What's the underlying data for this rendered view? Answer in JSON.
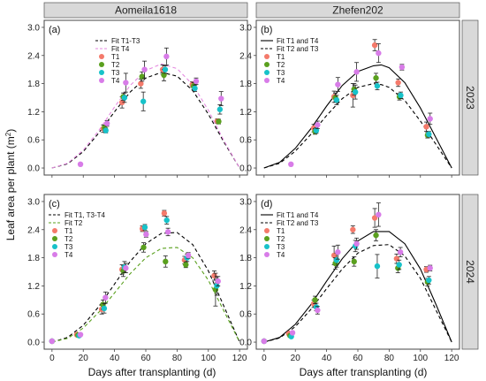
{
  "figure": {
    "columns": [
      "Aomeila1618",
      "Zhefen202"
    ],
    "rows": [
      "2023",
      "2024"
    ],
    "xlabel": "Days after transplanting (d)",
    "ylabel_main": "Leaf area per plant (m",
    "ylabel_sup": "2",
    "ylabel_end": ")"
  },
  "chart_data": [
    {
      "type": "scatter",
      "panel": "(a)",
      "column": "Aomeila1618",
      "row": "2023",
      "xlim": [
        -5,
        125
      ],
      "ylim": [
        -0.15,
        3.15
      ],
      "xticks": [
        0,
        20,
        40,
        60,
        80,
        100,
        120
      ],
      "yticks": [
        0.0,
        0.6,
        1.2,
        1.8,
        2.4,
        3.0
      ],
      "grid": false,
      "legend_position": "top-right",
      "fits": [
        {
          "name": "Fit T1-T3",
          "color": "#000000",
          "dash": "dashed",
          "x": [
            0,
            10,
            20,
            30,
            40,
            50,
            60,
            70,
            80,
            90,
            100,
            110,
            120
          ],
          "y": [
            0.0,
            0.09,
            0.35,
            0.75,
            1.2,
            1.62,
            1.92,
            2.04,
            1.96,
            1.65,
            1.15,
            0.55,
            0.0
          ]
        },
        {
          "name": "Fit T4",
          "color": "#e58ae0",
          "dash": "dashed",
          "x": [
            0,
            10,
            20,
            30,
            40,
            50,
            60,
            70,
            80,
            90,
            100,
            110,
            120
          ],
          "y": [
            0.0,
            0.1,
            0.38,
            0.8,
            1.3,
            1.76,
            2.08,
            2.22,
            2.12,
            1.78,
            1.23,
            0.58,
            0.0
          ]
        }
      ],
      "series": [
        {
          "name": "T1",
          "color": "#f47a6b",
          "points": [
            [
              34,
              0.84,
              0.08
            ],
            [
              46,
              1.4,
              0.12
            ],
            [
              58,
              1.8,
              0.1
            ],
            [
              72,
              2.1,
              0.1
            ],
            [
              91,
              1.78,
              0.06
            ],
            [
              107,
              1.0,
              0.05
            ]
          ]
        },
        {
          "name": "T2",
          "color": "#5aa01e",
          "points": [
            [
              34,
              0.86,
              0.05
            ],
            [
              46,
              1.52,
              0.08
            ],
            [
              58,
              1.95,
              0.1
            ],
            [
              72,
              1.98,
              0.12
            ],
            [
              91,
              1.75,
              0.07
            ],
            [
              107,
              0.99,
              0.05
            ]
          ]
        },
        {
          "name": "T3",
          "color": "#17c2c9",
          "points": [
            [
              34,
              0.8,
              0.05
            ],
            [
              46,
              1.5,
              0.1
            ],
            [
              58,
              1.42,
              0.2
            ],
            [
              72,
              2.1,
              0.08
            ],
            [
              91,
              1.7,
              0.07
            ],
            [
              107,
              1.25,
              0.1
            ]
          ]
        },
        {
          "name": "T4",
          "color": "#d87ce8",
          "points": [
            [
              17,
              0.08,
              0.0
            ],
            [
              34,
              0.95,
              0.06
            ],
            [
              46,
              1.82,
              0.2
            ],
            [
              58,
              2.1,
              0.18
            ],
            [
              72,
              2.38,
              0.18
            ],
            [
              91,
              1.85,
              0.07
            ],
            [
              107,
              1.48,
              0.15
            ]
          ]
        }
      ]
    },
    {
      "type": "scatter",
      "panel": "(b)",
      "column": "Zhefen202",
      "row": "2023",
      "xlim": [
        -5,
        125
      ],
      "ylim": [
        -0.15,
        3.15
      ],
      "xticks": [
        0,
        20,
        40,
        60,
        80,
        100,
        120
      ],
      "yticks": [
        0.0,
        0.6,
        1.2,
        1.8,
        2.4,
        3.0
      ],
      "grid": false,
      "legend_position": "top-left",
      "fits": [
        {
          "name": "Fit T1 and T4",
          "color": "#000000",
          "dash": "solid",
          "x": [
            0,
            10,
            20,
            30,
            40,
            50,
            60,
            70,
            75,
            80,
            90,
            100,
            110,
            120
          ],
          "y": [
            0.0,
            0.12,
            0.42,
            0.84,
            1.32,
            1.76,
            2.06,
            2.18,
            2.2,
            2.14,
            1.82,
            1.28,
            0.64,
            0.0
          ]
        },
        {
          "name": "Fit T2 and T3",
          "color": "#000000",
          "dash": "dashed",
          "x": [
            0,
            10,
            20,
            30,
            40,
            50,
            60,
            70,
            75,
            80,
            90,
            100,
            110,
            120
          ],
          "y": [
            0.0,
            0.1,
            0.36,
            0.72,
            1.12,
            1.48,
            1.72,
            1.8,
            1.78,
            1.72,
            1.44,
            1.0,
            0.5,
            0.0
          ]
        }
      ],
      "series": [
        {
          "name": "T1",
          "color": "#f47a6b",
          "points": [
            [
              33,
              0.85,
              0.08
            ],
            [
              46,
              1.52,
              0.12
            ],
            [
              58,
              1.55,
              0.25
            ],
            [
              72,
              2.62,
              0.12
            ],
            [
              87,
              1.82,
              0.08
            ],
            [
              105,
              0.88,
              0.1
            ]
          ]
        },
        {
          "name": "T2",
          "color": "#5aa01e",
          "points": [
            [
              33,
              0.78,
              0.06
            ],
            [
              46,
              1.5,
              0.1
            ],
            [
              58,
              1.68,
              0.12
            ],
            [
              72,
              1.92,
              0.1
            ],
            [
              87,
              1.52,
              0.07
            ],
            [
              105,
              0.7,
              0.06
            ]
          ]
        },
        {
          "name": "T3",
          "color": "#17c2c9",
          "points": [
            [
              33,
              0.8,
              0.06
            ],
            [
              46,
              1.45,
              0.1
            ],
            [
              58,
              1.62,
              0.15
            ],
            [
              72,
              1.75,
              0.08
            ],
            [
              87,
              1.55,
              0.07
            ],
            [
              105,
              0.72,
              0.06
            ]
          ]
        },
        {
          "name": "T4",
          "color": "#d87ce8",
          "points": [
            [
              16,
              0.08,
              0.0
            ],
            [
              33,
              0.92,
              0.08
            ],
            [
              46,
              1.78,
              0.15
            ],
            [
              58,
              2.05,
              0.2
            ],
            [
              72,
              2.45,
              0.2
            ],
            [
              87,
              2.15,
              0.06
            ],
            [
              105,
              1.05,
              0.12
            ]
          ]
        }
      ]
    },
    {
      "type": "scatter",
      "panel": "(c)",
      "column": "Aomeila1618",
      "row": "2024",
      "xlim": [
        -5,
        125
      ],
      "ylim": [
        -0.15,
        3.15
      ],
      "xticks": [
        0,
        20,
        40,
        60,
        80,
        100,
        120
      ],
      "yticks": [
        0.0,
        0.6,
        1.2,
        1.8,
        2.4,
        3.0
      ],
      "grid": false,
      "legend_position": "top-left",
      "fits": [
        {
          "name": "Fit T1, T3-T4",
          "color": "#000000",
          "dash": "dashed",
          "x": [
            0,
            10,
            20,
            30,
            40,
            50,
            60,
            70,
            80,
            90,
            100,
            110,
            120
          ],
          "y": [
            0.0,
            0.1,
            0.36,
            0.76,
            1.24,
            1.72,
            2.1,
            2.32,
            2.34,
            2.08,
            1.52,
            0.76,
            0.0
          ]
        },
        {
          "name": "Fit T2",
          "color": "#5aa01e",
          "dash": "dashed",
          "x": [
            0,
            10,
            20,
            30,
            40,
            50,
            60,
            70,
            80,
            90,
            100,
            110,
            120
          ],
          "y": [
            0.0,
            0.08,
            0.3,
            0.64,
            1.05,
            1.46,
            1.8,
            2.0,
            2.02,
            1.8,
            1.32,
            0.66,
            0.0
          ]
        }
      ],
      "series": [
        {
          "name": "T1",
          "color": "#f47a6b",
          "points": [
            [
              0,
              0.02,
              0.0
            ],
            [
              17,
              0.16,
              0.0
            ],
            [
              33,
              0.7,
              0.1
            ],
            [
              46,
              1.55,
              0.1
            ],
            [
              59,
              2.42,
              0.06
            ],
            [
              73,
              2.75,
              0.06
            ],
            [
              86,
              1.75,
              0.08
            ],
            [
              105,
              1.42,
              0.1
            ]
          ]
        },
        {
          "name": "T2",
          "color": "#5aa01e",
          "points": [
            [
              0,
              0.02,
              0.0
            ],
            [
              17,
              0.15,
              0.0
            ],
            [
              33,
              0.8,
              0.1
            ],
            [
              46,
              1.52,
              0.12
            ],
            [
              59,
              2.02,
              0.1
            ],
            [
              73,
              1.72,
              0.12
            ],
            [
              86,
              1.65,
              0.06
            ],
            [
              105,
              1.12,
              0.35
            ]
          ]
        },
        {
          "name": "T3",
          "color": "#17c2c9",
          "points": [
            [
              0,
              0.02,
              0.0
            ],
            [
              17,
              0.14,
              0.0
            ],
            [
              33,
              0.72,
              0.1
            ],
            [
              46,
              1.6,
              0.12
            ],
            [
              59,
              2.45,
              0.06
            ],
            [
              73,
              2.6,
              0.08
            ],
            [
              86,
              1.8,
              0.08
            ],
            [
              105,
              1.2,
              0.2
            ]
          ]
        },
        {
          "name": "T4",
          "color": "#d87ce8",
          "points": [
            [
              0,
              0.02,
              0.0
            ],
            [
              17,
              0.16,
              0.0
            ],
            [
              33,
              0.95,
              0.12
            ],
            [
              46,
              1.58,
              0.1
            ],
            [
              59,
              2.3,
              0.06
            ],
            [
              73,
              2.35,
              0.08
            ],
            [
              86,
              1.85,
              0.06
            ],
            [
              105,
              1.3,
              0.1
            ]
          ]
        }
      ]
    },
    {
      "type": "scatter",
      "panel": "(d)",
      "column": "Zhefen202",
      "row": "2024",
      "xlim": [
        -5,
        125
      ],
      "ylim": [
        -0.15,
        3.15
      ],
      "xticks": [
        0,
        20,
        40,
        60,
        80,
        100,
        120
      ],
      "yticks": [
        0.0,
        0.6,
        1.2,
        1.8,
        2.4,
        3.0
      ],
      "grid": false,
      "legend_position": "top-left",
      "fits": [
        {
          "name": "Fit T1 and T4",
          "color": "#000000",
          "dash": "solid",
          "x": [
            0,
            10,
            20,
            30,
            40,
            50,
            60,
            70,
            80,
            90,
            100,
            110,
            120
          ],
          "y": [
            0.0,
            0.1,
            0.38,
            0.8,
            1.3,
            1.78,
            2.16,
            2.36,
            2.36,
            2.1,
            1.56,
            0.8,
            0.0
          ]
        },
        {
          "name": "Fit T2 and T3",
          "color": "#000000",
          "dash": "dashed",
          "x": [
            0,
            10,
            20,
            30,
            40,
            50,
            60,
            70,
            80,
            90,
            100,
            110,
            120
          ],
          "y": [
            0.0,
            0.09,
            0.33,
            0.7,
            1.14,
            1.56,
            1.9,
            2.06,
            2.08,
            1.84,
            1.36,
            0.68,
            0.0
          ]
        }
      ],
      "series": [
        {
          "name": "T1",
          "color": "#f47a6b",
          "points": [
            [
              0,
              0.02,
              0.0
            ],
            [
              17,
              0.18,
              0.0
            ],
            [
              33,
              0.82,
              0.08
            ],
            [
              46,
              1.85,
              0.2
            ],
            [
              58,
              2.4,
              0.08
            ],
            [
              72,
              2.65,
              0.2
            ],
            [
              86,
              1.78,
              0.1
            ],
            [
              105,
              1.55,
              0.06
            ]
          ]
        },
        {
          "name": "T2",
          "color": "#5aa01e",
          "points": [
            [
              0,
              0.02,
              0.0
            ],
            [
              17,
              0.14,
              0.0
            ],
            [
              33,
              0.9,
              0.08
            ],
            [
              46,
              1.68,
              0.12
            ],
            [
              58,
              1.72,
              0.1
            ],
            [
              72,
              2.28,
              0.12
            ],
            [
              86,
              1.58,
              0.1
            ],
            [
              105,
              1.28,
              0.08
            ]
          ]
        },
        {
          "name": "T3",
          "color": "#17c2c9",
          "points": [
            [
              0,
              0.02,
              0.0
            ],
            [
              17,
              0.12,
              0.0
            ],
            [
              33,
              0.75,
              0.08
            ],
            [
              46,
              1.75,
              0.15
            ],
            [
              58,
              2.05,
              0.12
            ],
            [
              72,
              1.62,
              0.25
            ],
            [
              86,
              1.65,
              0.1
            ],
            [
              105,
              1.32,
              0.08
            ]
          ]
        },
        {
          "name": "T4",
          "color": "#d87ce8",
          "points": [
            [
              0,
              0.02,
              0.0
            ],
            [
              17,
              0.2,
              0.0
            ],
            [
              33,
              0.68,
              0.08
            ],
            [
              46,
              1.92,
              0.15
            ],
            [
              58,
              2.1,
              0.12
            ],
            [
              72,
              2.72,
              0.25
            ],
            [
              86,
              1.92,
              0.1
            ],
            [
              105,
              1.58,
              0.06
            ]
          ]
        }
      ]
    }
  ]
}
